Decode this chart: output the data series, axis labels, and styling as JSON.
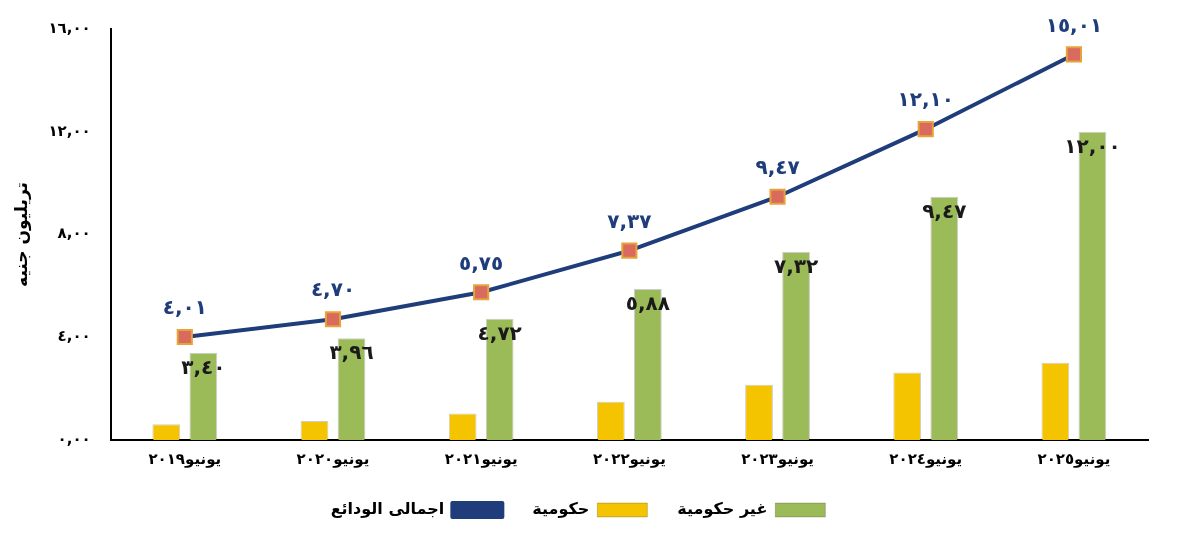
{
  "chart_data": {
    "type": "bar",
    "ylabel": "تريليون جنيه",
    "categories": [
      "يونيو٢٠١٩",
      "يونيو٢٠٢٠",
      "يونيو٢٠٢١",
      "يونيو٢٠٢٢",
      "يونيو٢٠٢٣",
      "يونيو٢٠٢٤",
      "يونيو٢٠٢٥"
    ],
    "series": [
      {
        "name": "حكومية",
        "color": "#f5c400",
        "values": [
          0.61,
          0.74,
          1.03,
          1.49,
          2.15,
          2.63,
          3.01
        ]
      },
      {
        "name": "غير حكومية",
        "color": "#9bbb59",
        "values": [
          3.4,
          3.96,
          4.72,
          5.88,
          7.32,
          9.47,
          12.0
        ],
        "value_labels": [
          "٣,٤٠",
          "٣,٩٦",
          "٤,٧٢",
          "٥,٨٨",
          "٧,٣٢",
          "٩,٤٧",
          "١٢,٠٠"
        ]
      },
      {
        "name": "اجمالى الودائع",
        "type": "line",
        "color": "#1f3d7a",
        "marker": "square",
        "values": [
          4.01,
          4.7,
          5.75,
          7.37,
          9.47,
          12.1,
          15.01
        ],
        "value_labels": [
          "٤,٠١",
          "٤,٧٠",
          "٥,٧٥",
          "٧,٣٧",
          "٩,٤٧",
          "١٢,١٠",
          "١٥,٠١"
        ]
      }
    ],
    "ylim": [
      0,
      16
    ],
    "yticks": [
      {
        "value": 0,
        "label": "٠,٠٠"
      },
      {
        "value": 4,
        "label": "٤,٠٠"
      },
      {
        "value": 8,
        "label": "٨,٠٠"
      },
      {
        "value": 12,
        "label": "١٢,٠٠"
      },
      {
        "value": 16,
        "label": "١٦,٠٠"
      }
    ],
    "grid": false,
    "legend": "bottom"
  }
}
